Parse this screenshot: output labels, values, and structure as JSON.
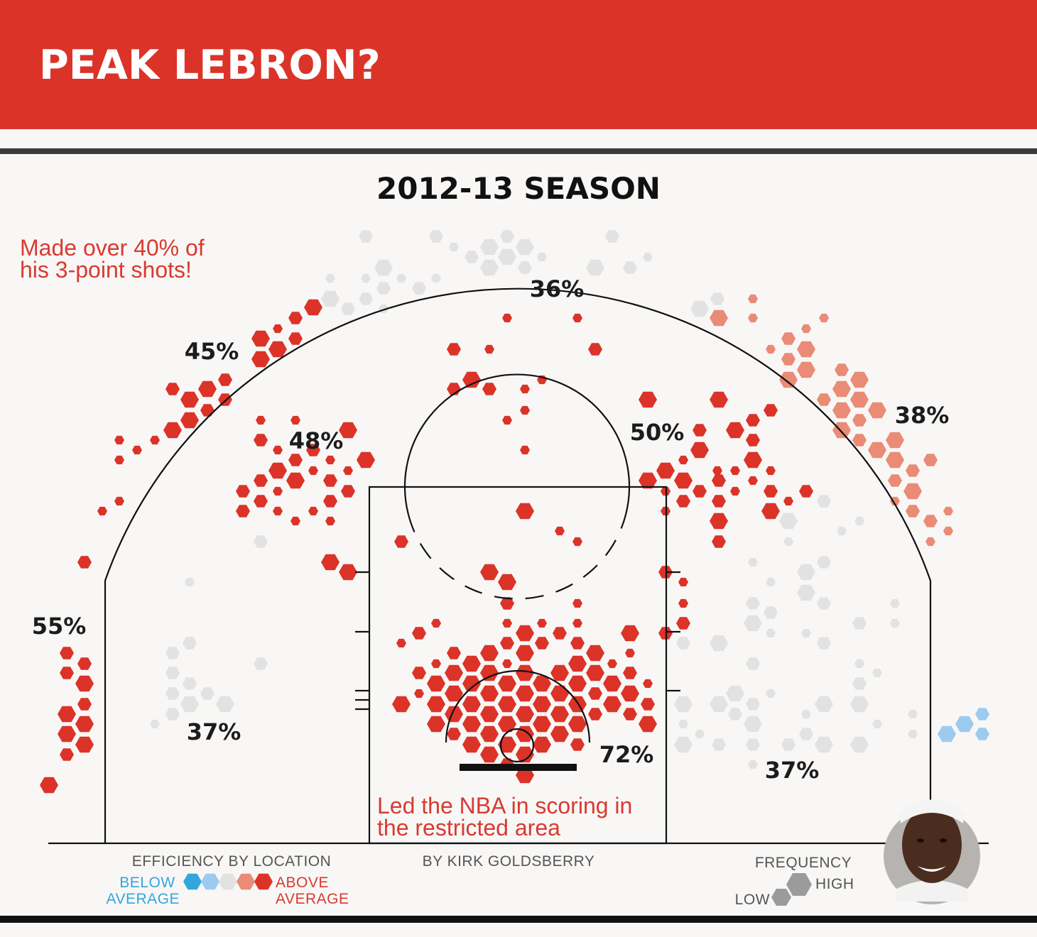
{
  "header": {
    "title": "PEAK LEBRON?"
  },
  "chart_data": {
    "type": "heatmap",
    "title": "2012-13 SEASON",
    "byline": "BY KIRK GOLDSBERRY",
    "zones": [
      {
        "label": "36%",
        "value": 36
      },
      {
        "label": "45%",
        "value": 45
      },
      {
        "label": "48%",
        "value": 48
      },
      {
        "label": "50%",
        "value": 50
      },
      {
        "label": "38%",
        "value": 38
      },
      {
        "label": "55%",
        "value": 55
      },
      {
        "label": "37%",
        "value": 37
      },
      {
        "label": "72%",
        "value": 72
      },
      {
        "label": "37%",
        "value": 37
      }
    ],
    "annotations": [
      [
        "Made over 40% of",
        "his 3-point shots!"
      ],
      [
        "Led the NBA in scoring in",
        "the restricted area"
      ]
    ],
    "legend": {
      "efficiency": {
        "title": "EFFICIENCY BY LOCATION",
        "low": [
          "BELOW",
          "AVERAGE"
        ],
        "high": [
          "ABOVE",
          "AVERAGE"
        ],
        "colors": [
          "#32a6dc",
          "#9dcbef",
          "#e2e2e2",
          "#ea8b76",
          "#dc3328"
        ]
      },
      "frequency": {
        "title": "FREQUENCY",
        "low": "LOW",
        "high": "HIGH"
      }
    },
    "colors": {
      "above": "#dc3328",
      "slightly_above": "#ea8b76",
      "average": "#e2e2e2",
      "slightly_below": "#9dcbef",
      "below": "#32a6dc"
    }
  }
}
